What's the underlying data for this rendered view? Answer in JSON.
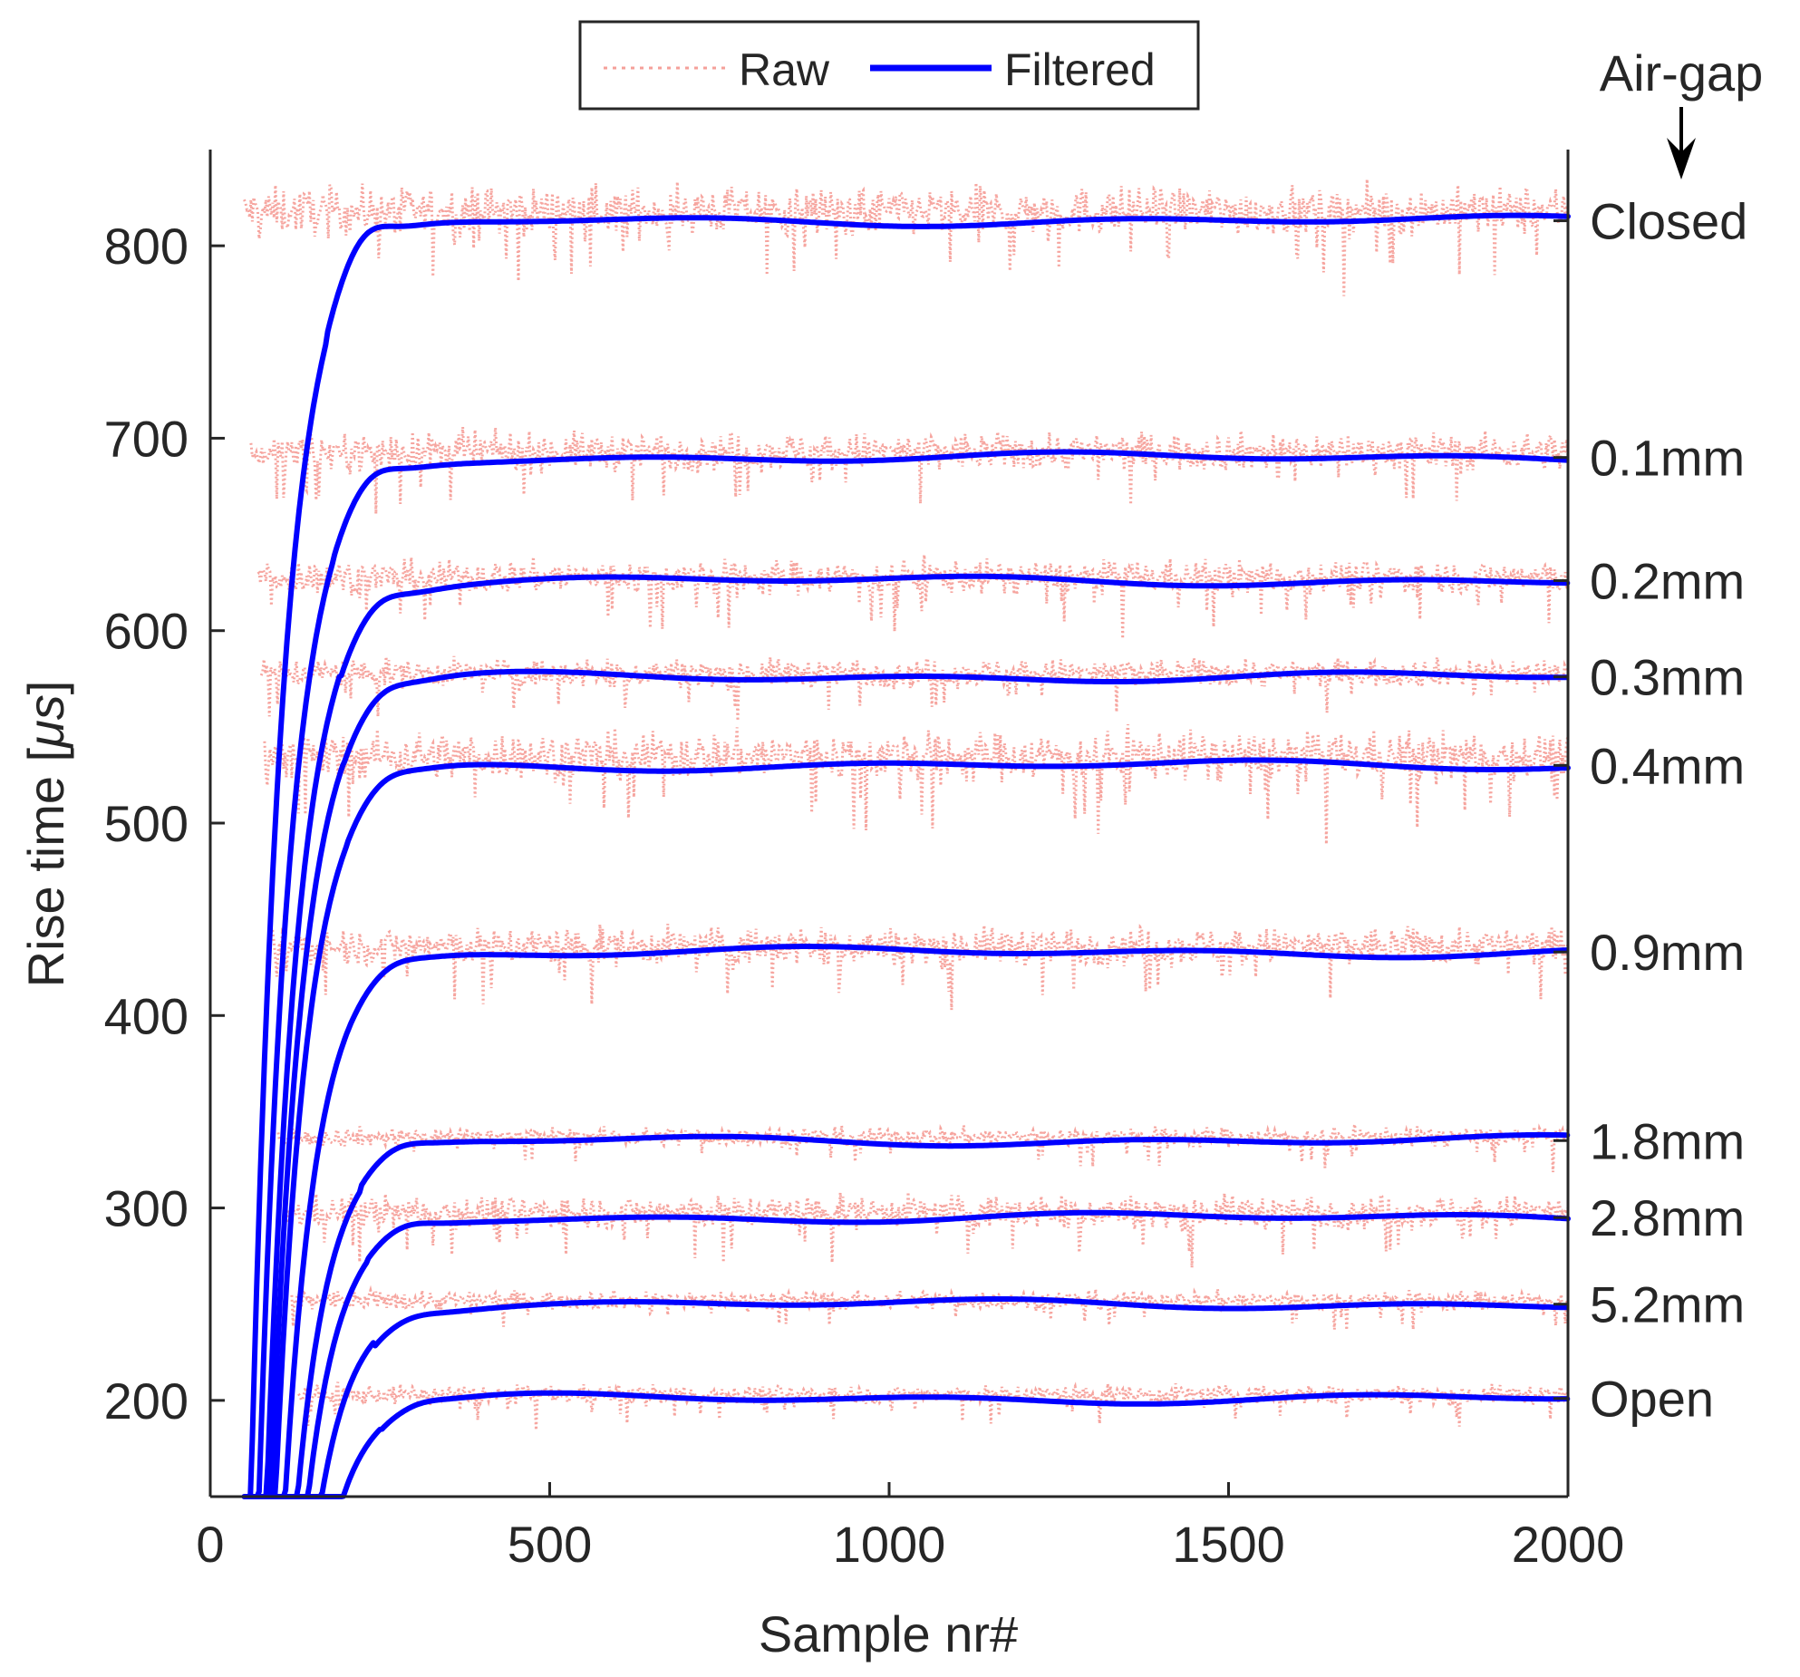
{
  "chart_data": {
    "type": "line",
    "title": "",
    "xlabel": "Sample nr#",
    "ylabel_prefix": "Rise time [",
    "ylabel_unit": "μs",
    "ylabel_suffix": "]",
    "xlim": [
      0,
      2000
    ],
    "ylim": [
      150,
      850
    ],
    "xticks": [
      0,
      500,
      1000,
      1500,
      2000
    ],
    "yticks": [
      200,
      300,
      400,
      500,
      600,
      700,
      800
    ],
    "grid": false,
    "legend": {
      "placement": "top-center",
      "entries": [
        {
          "name": "Raw",
          "style": "dotted",
          "color": "#f5a09a"
        },
        {
          "name": "Filtered",
          "style": "solid",
          "color": "#0000ff"
        }
      ]
    },
    "right_axis_title": "Air-gap",
    "series": [
      {
        "name": "Closed",
        "level": 813,
        "raw_mean": 818,
        "noise": 10,
        "start": 50,
        "overshoot": 10
      },
      {
        "name": "0.1mm",
        "level": 690,
        "raw_mean": 693,
        "noise": 8,
        "start": 60,
        "overshoot": 7
      },
      {
        "name": "0.2mm",
        "level": 626,
        "raw_mean": 628,
        "noise": 7,
        "start": 70,
        "overshoot": 6
      },
      {
        "name": "0.3mm",
        "level": 576,
        "raw_mean": 578,
        "noise": 6,
        "start": 75,
        "overshoot": 5
      },
      {
        "name": "0.4mm",
        "level": 530,
        "raw_mean": 535,
        "noise": 10,
        "start": 80,
        "overshoot": 4
      },
      {
        "name": "0.9mm",
        "level": 433,
        "raw_mean": 436,
        "noise": 8,
        "start": 90,
        "overshoot": 3
      },
      {
        "name": "1.8mm",
        "level": 335,
        "raw_mean": 337,
        "noise": 4,
        "start": 100,
        "overshoot": 3
      },
      {
        "name": "2.8mm",
        "level": 295,
        "raw_mean": 298,
        "noise": 7,
        "start": 110,
        "overshoot": 3
      },
      {
        "name": "5.2mm",
        "level": 250,
        "raw_mean": 252,
        "noise": 4,
        "start": 120,
        "overshoot": 2
      },
      {
        "name": "Open",
        "level": 201,
        "raw_mean": 203,
        "noise": 4,
        "start": 130,
        "overshoot": 2
      }
    ]
  }
}
